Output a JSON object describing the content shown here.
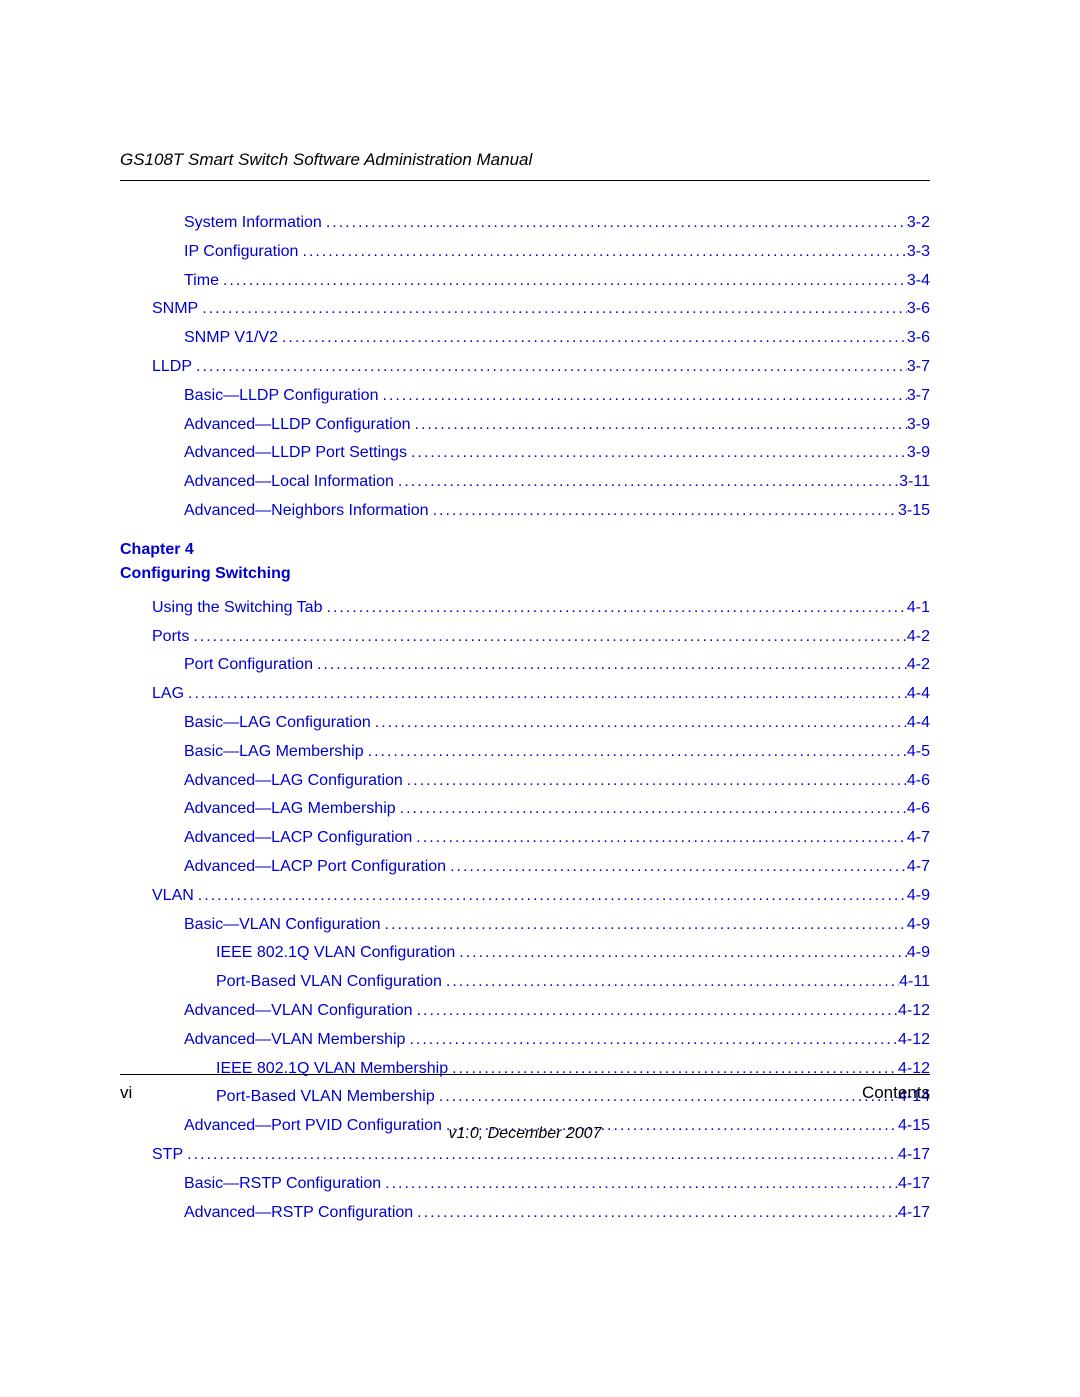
{
  "header": "GS108T Smart Switch Software Administration Manual",
  "link_color": "#0000cc",
  "text_color": "#000000",
  "entries": [
    {
      "label": "System Information",
      "page": "3-2",
      "indent": 2
    },
    {
      "label": "IP Configuration",
      "page": "3-3",
      "indent": 2
    },
    {
      "label": "Time",
      "page": "3-4",
      "indent": 2
    },
    {
      "label": "SNMP",
      "page": "3-6",
      "indent": 1
    },
    {
      "label": "SNMP V1/V2",
      "page": "3-6",
      "indent": 2
    },
    {
      "label": "LLDP",
      "page": "3-7",
      "indent": 1
    },
    {
      "label": "Basic—LLDP Configuration",
      "page": "3-7",
      "indent": 2
    },
    {
      "label": "Advanced—LLDP Configuration",
      "page": "3-9",
      "indent": 2
    },
    {
      "label": "Advanced—LLDP Port Settings",
      "page": "3-9",
      "indent": 2
    },
    {
      "label": "Advanced—Local Information",
      "page": "3-11",
      "indent": 2
    },
    {
      "label": "Advanced—Neighbors Information",
      "page": "3-15",
      "indent": 2
    }
  ],
  "chapter": {
    "number": "Chapter 4",
    "title": "Configuring Switching"
  },
  "entries2": [
    {
      "label": "Using the Switching Tab",
      "page": "4-1",
      "indent": 1
    },
    {
      "label": "Ports",
      "page": "4-2",
      "indent": 1
    },
    {
      "label": "Port Configuration",
      "page": "4-2",
      "indent": 2
    },
    {
      "label": "LAG",
      "page": "4-4",
      "indent": 1
    },
    {
      "label": "Basic—LAG Configuration",
      "page": "4-4",
      "indent": 2
    },
    {
      "label": "Basic—LAG Membership",
      "page": "4-5",
      "indent": 2
    },
    {
      "label": "Advanced—LAG Configuration",
      "page": "4-6",
      "indent": 2
    },
    {
      "label": "Advanced—LAG Membership",
      "page": "4-6",
      "indent": 2
    },
    {
      "label": "Advanced—LACP Configuration",
      "page": "4-7",
      "indent": 2
    },
    {
      "label": "Advanced—LACP Port Configuration",
      "page": "4-7",
      "indent": 2
    },
    {
      "label": "VLAN",
      "page": "4-9",
      "indent": 1
    },
    {
      "label": "Basic—VLAN Configuration",
      "page": "4-9",
      "indent": 2
    },
    {
      "label": "IEEE 802.1Q VLAN Configuration",
      "page": "4-9",
      "indent": 3
    },
    {
      "label": "Port-Based VLAN Configuration",
      "page": "4-11",
      "indent": 3
    },
    {
      "label": "Advanced—VLAN Configuration",
      "page": "4-12",
      "indent": 2
    },
    {
      "label": "Advanced—VLAN Membership",
      "page": "4-12",
      "indent": 2
    },
    {
      "label": "IEEE 802.1Q VLAN Membership",
      "page": "4-12",
      "indent": 3
    },
    {
      "label": "Port-Based VLAN Membership",
      "page": "4-14",
      "indent": 3
    },
    {
      "label": "Advanced—Port PVID Configuration",
      "page": "4-15",
      "indent": 2
    },
    {
      "label": "STP",
      "page": "4-17",
      "indent": 1
    },
    {
      "label": "Basic—RSTP Configuration",
      "page": "4-17",
      "indent": 2
    },
    {
      "label": "Advanced—RSTP Configuration",
      "page": "4-17",
      "indent": 2
    }
  ],
  "footer": {
    "left": "vi",
    "right": "Contents",
    "version": "v1.0, December 2007"
  }
}
